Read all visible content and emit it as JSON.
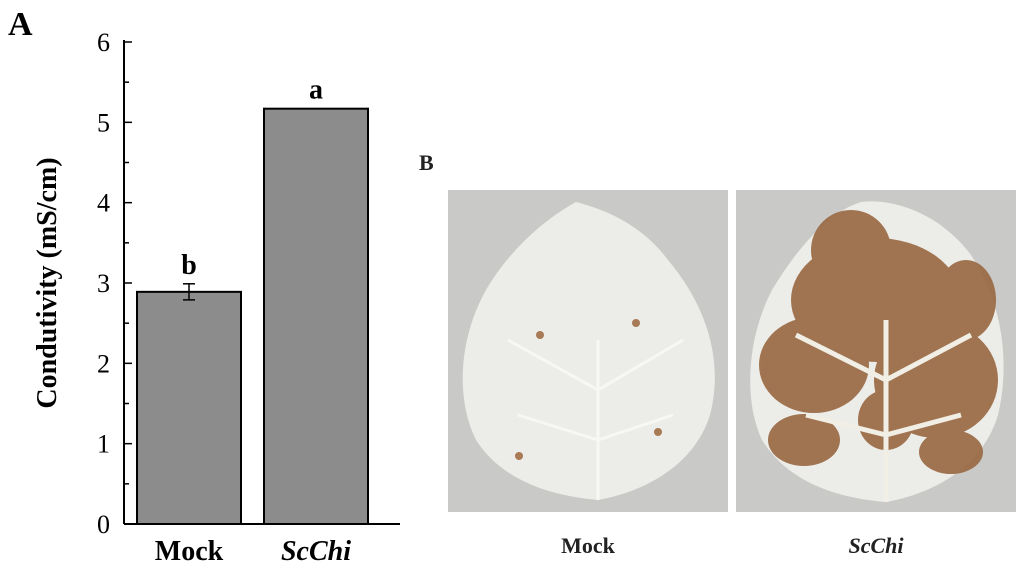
{
  "panel_a_label": "A",
  "panel_b_label": "B",
  "colors": {
    "bar_fill": "#8c8c8c",
    "axis": "#000000",
    "paper_bg": "#c9c9c7",
    "leaf": "#ecece8",
    "stain": "#9a6a44"
  },
  "chart_data": {
    "type": "bar",
    "categories": [
      "Mock",
      "ScChi"
    ],
    "values": [
      2.89,
      5.17
    ],
    "error": [
      0.1,
      0.0
    ],
    "significance_letters": [
      "b",
      "a"
    ],
    "ylabel": "Condutivity (mS/cm)",
    "xlabel": "",
    "ylim": [
      0,
      6
    ],
    "yticks": [
      "0",
      "1",
      "2",
      "3",
      "4",
      "5",
      "6"
    ],
    "italic_categories": [
      "ScChi"
    ],
    "grid": false
  },
  "photos": {
    "mock_caption": "Mock",
    "scchi_caption": "ScChi"
  }
}
